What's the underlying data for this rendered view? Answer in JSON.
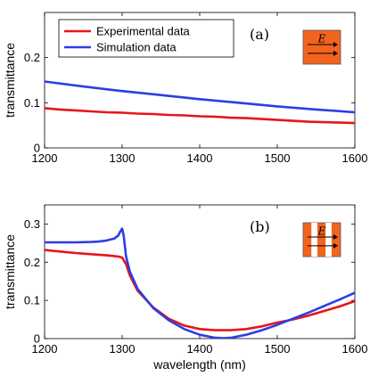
{
  "colors": {
    "experimental": "#e8141b",
    "simulation": "#2b3ee6",
    "inset_fill": "#f2641e",
    "inset_stripe": "#ffffff"
  },
  "chart_data": [
    {
      "type": "line",
      "panel_label": "(a)",
      "inset_field_label": "E",
      "inset_type": "solid",
      "xlabel": "",
      "ylabel": "transmittance",
      "xlim": [
        1200,
        1600
      ],
      "ylim": [
        0,
        0.3
      ],
      "xticks": [
        "1200",
        "1300",
        "1400",
        "1500",
        "1600"
      ],
      "yticks": [
        "0",
        "0.1",
        "0.2"
      ],
      "ytick_values": [
        0,
        0.1,
        0.2
      ],
      "legend_position": "top-left",
      "series": [
        {
          "name": "Experimental data",
          "color_key": "experimental",
          "x": [
            1200,
            1220,
            1240,
            1260,
            1280,
            1300,
            1320,
            1340,
            1360,
            1380,
            1400,
            1420,
            1440,
            1460,
            1480,
            1500,
            1520,
            1540,
            1560,
            1580,
            1600
          ],
          "y": [
            0.088,
            0.085,
            0.083,
            0.081,
            0.079,
            0.078,
            0.076,
            0.075,
            0.073,
            0.072,
            0.07,
            0.069,
            0.067,
            0.066,
            0.064,
            0.062,
            0.06,
            0.058,
            0.057,
            0.056,
            0.055
          ]
        },
        {
          "name": "Simulation data",
          "color_key": "simulation",
          "x": [
            1200,
            1250,
            1300,
            1350,
            1400,
            1450,
            1500,
            1550,
            1600
          ],
          "y": [
            0.147,
            0.136,
            0.126,
            0.117,
            0.108,
            0.1,
            0.092,
            0.085,
            0.079
          ]
        }
      ]
    },
    {
      "type": "line",
      "panel_label": "(b)",
      "inset_field_label": "E",
      "inset_type": "striped",
      "xlabel": "wavelength (nm)",
      "ylabel": "transmittance",
      "xlim": [
        1200,
        1600
      ],
      "ylim": [
        0,
        0.35
      ],
      "xticks": [
        "1200",
        "1300",
        "1400",
        "1500",
        "1600"
      ],
      "yticks": [
        "0",
        "0.1",
        "0.2",
        "0.3"
      ],
      "ytick_values": [
        0,
        0.1,
        0.2,
        0.3
      ],
      "series": [
        {
          "name": "Experimental data",
          "color_key": "experimental",
          "x": [
            1200,
            1220,
            1240,
            1260,
            1280,
            1295,
            1300,
            1305,
            1310,
            1320,
            1340,
            1360,
            1380,
            1400,
            1420,
            1440,
            1460,
            1480,
            1500,
            1520,
            1540,
            1560,
            1580,
            1600
          ],
          "y": [
            0.232,
            0.228,
            0.224,
            0.221,
            0.218,
            0.215,
            0.212,
            0.195,
            0.165,
            0.125,
            0.082,
            0.052,
            0.034,
            0.025,
            0.022,
            0.022,
            0.025,
            0.032,
            0.042,
            0.05,
            0.06,
            0.072,
            0.084,
            0.098
          ]
        },
        {
          "name": "Simulation data",
          "color_key": "simulation",
          "x": [
            1200,
            1220,
            1240,
            1260,
            1270,
            1280,
            1290,
            1295,
            1298,
            1300,
            1302,
            1305,
            1310,
            1320,
            1340,
            1360,
            1380,
            1400,
            1420,
            1430,
            1440,
            1460,
            1480,
            1500,
            1520,
            1540,
            1560,
            1580,
            1600
          ],
          "y": [
            0.252,
            0.252,
            0.252,
            0.253,
            0.254,
            0.257,
            0.262,
            0.27,
            0.282,
            0.288,
            0.27,
            0.215,
            0.175,
            0.13,
            0.08,
            0.048,
            0.025,
            0.01,
            0.002,
            0.001,
            0.002,
            0.01,
            0.022,
            0.036,
            0.052,
            0.068,
            0.085,
            0.102,
            0.12
          ]
        }
      ]
    }
  ]
}
